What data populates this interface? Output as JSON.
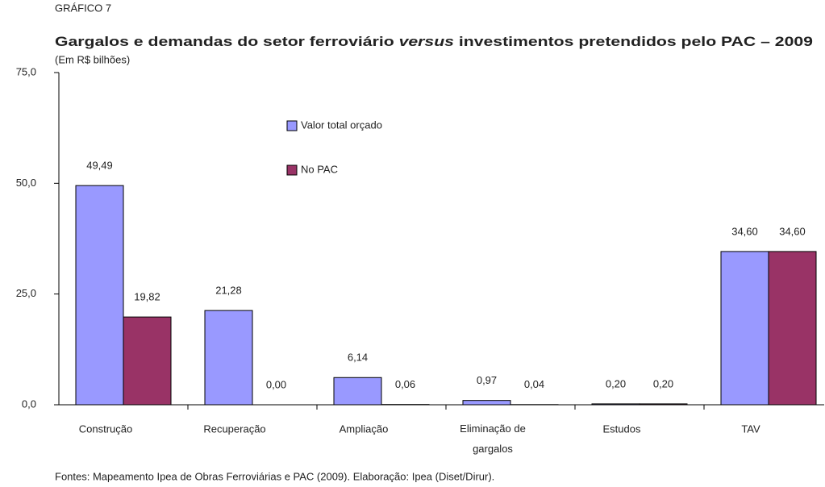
{
  "chart_data": {
    "type": "bar",
    "kicker": "GRÁFICO 7",
    "title": [
      "Gargalos e demandas do setor ferroviário",
      "versus",
      "investimentos pretendidos pelo PAC – 2009"
    ],
    "subtitle": "(Em R$ bilhões)",
    "source": "Fontes: Mapeamento Ipea de Obras Ferroviárias e PAC (2009). Elaboração: Ipea (Diset/Dirur).",
    "categories": [
      "Construção",
      "Recuperação",
      "Ampliação",
      "Eliminação de gargalos",
      "Estudos",
      "TAV"
    ],
    "series": [
      {
        "name": "Valor total orçado",
        "color": "#9999ff",
        "values": [
          49.49,
          21.28,
          6.14,
          0.97,
          0.2,
          34.6
        ],
        "value_labels": [
          "49,49",
          "21,28",
          "6,14",
          "0,97",
          "0,20",
          "34,60"
        ]
      },
      {
        "name": "No PAC",
        "color": "#993366",
        "values": [
          19.82,
          0.0,
          0.06,
          0.04,
          0.2,
          34.6
        ],
        "value_labels": [
          "19,82",
          "0,00",
          "0,06",
          "0,04",
          "0,20",
          "34,60"
        ]
      }
    ],
    "ylim": [
      0,
      75
    ],
    "yticks": [
      {
        "value": 0,
        "label": "0,0"
      },
      {
        "value": 25,
        "label": "25,0"
      },
      {
        "value": 50,
        "label": "50,0"
      },
      {
        "value": 75,
        "label": "75,0"
      }
    ],
    "grid": false
  }
}
